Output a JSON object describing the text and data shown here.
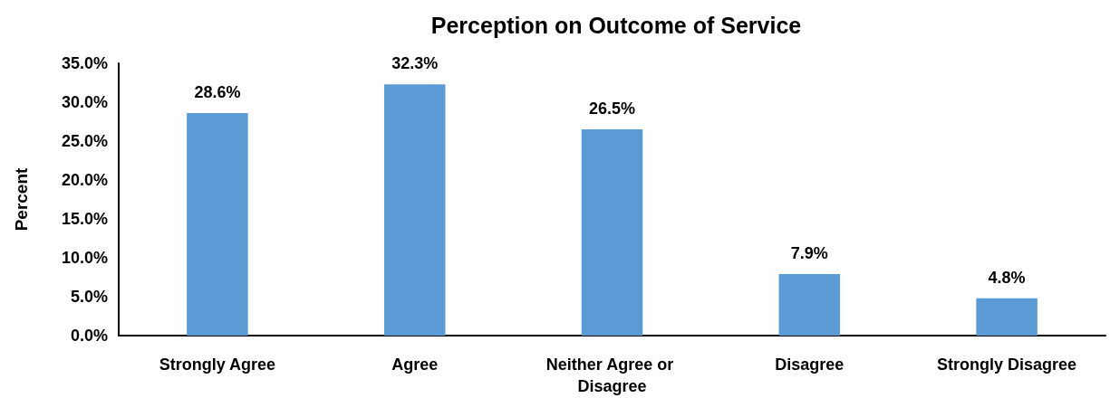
{
  "chart_data": {
    "type": "bar",
    "title": "Perception on Outcome of Service",
    "ylabel": "Percent",
    "categories": [
      "Strongly Agree",
      "Agree",
      "Neither Agree or Disagree",
      "Disagree",
      "Strongly Disagree"
    ],
    "values": [
      28.6,
      32.3,
      26.5,
      7.9,
      4.8
    ],
    "value_labels": [
      "28.6%",
      "32.3%",
      "26.5%",
      "7.9%",
      "4.8%"
    ],
    "color": "#5b9bd5",
    "ylim": [
      0,
      35
    ],
    "yticks": [
      {
        "value": 0,
        "label": "0.0%"
      },
      {
        "value": 5,
        "label": "5.0%"
      },
      {
        "value": 10,
        "label": "10.0%"
      },
      {
        "value": 15,
        "label": "15.0%"
      },
      {
        "value": 20,
        "label": "20.0%"
      },
      {
        "value": 25,
        "label": "25.0%"
      },
      {
        "value": 30,
        "label": "30.0%"
      },
      {
        "value": 35,
        "label": "35.0%"
      }
    ]
  }
}
